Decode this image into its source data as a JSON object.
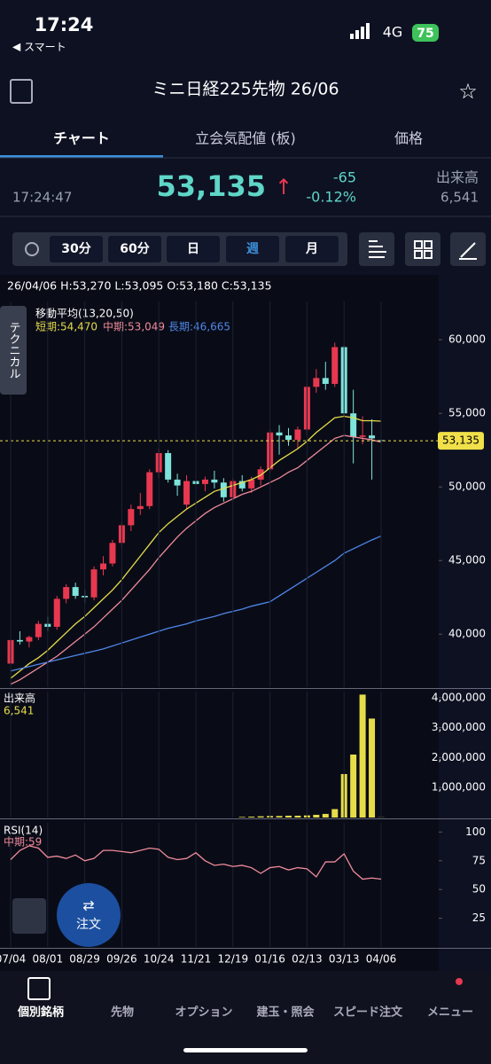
{
  "status": {
    "time": "17:24",
    "back": "スマート",
    "network": "4G",
    "battery": "75"
  },
  "header": {
    "title": "ミニ日経225先物 26/06"
  },
  "tabs": [
    "チャート",
    "立会気配値 (板)",
    "価格"
  ],
  "quote": {
    "time": "17:24:47",
    "price": "53,135",
    "arrow": "↑",
    "change": "-65",
    "change_pct": "-0.12%",
    "volume_label": "出来高",
    "volume": "6,541"
  },
  "toolbar": {
    "buttons": [
      "30分",
      "60分",
      "日",
      "週",
      "月"
    ],
    "selected": 3
  },
  "side_tab": "テクニカル",
  "ohlc_info": "26/04/06 H:53,270 L:53,095 O:53,180 C:53,135",
  "order_button": "注文",
  "nav": [
    "個別銘柄",
    "先物",
    "オプション",
    "建玉・照会",
    "スピード注文",
    "メニュー"
  ],
  "chart_data": [
    {
      "type": "candlestick",
      "title": "移動平均(13,20,50)",
      "up_color": "#e8384f",
      "down_color": "#7ee3da",
      "open": [
        38000,
        39600,
        39500,
        39800,
        40700,
        40500,
        42400,
        43200,
        42600,
        42500,
        44400,
        44800,
        46200,
        47400,
        48500,
        48700,
        51000,
        52300,
        50500,
        48800,
        50400,
        50200,
        50500,
        50300,
        49300,
        50400,
        49900,
        50500,
        51200,
        53700,
        53500,
        53200,
        53900,
        56800,
        57400,
        57000,
        59500,
        55000,
        53400,
        53500,
        53180
      ],
      "high": [
        39800,
        40200,
        39900,
        40900,
        41200,
        42600,
        43400,
        43500,
        43000,
        44600,
        45300,
        46400,
        47600,
        48800,
        49600,
        51200,
        52600,
        52500,
        50900,
        50800,
        50900,
        50700,
        51100,
        50600,
        50600,
        50800,
        50700,
        51400,
        53900,
        54200,
        54000,
        54100,
        57000,
        58000,
        58500,
        59800,
        59600,
        56600,
        54800,
        54600,
        53270
      ],
      "low": [
        37200,
        39300,
        39100,
        39600,
        40200,
        40300,
        42100,
        42400,
        42100,
        42300,
        44000,
        44600,
        45900,
        47000,
        48100,
        48500,
        50600,
        50300,
        49400,
        48500,
        49900,
        49700,
        49900,
        49000,
        49100,
        49700,
        49600,
        50100,
        51000,
        52200,
        52800,
        52600,
        53500,
        56400,
        56600,
        56800,
        54800,
        51600,
        52900,
        50500,
        53095
      ],
      "close": [
        39600,
        39500,
        39800,
        40700,
        40500,
        42400,
        43200,
        42600,
        42500,
        44400,
        44800,
        46200,
        47400,
        48500,
        48700,
        51000,
        52300,
        50500,
        50100,
        50400,
        50200,
        50500,
        50300,
        49300,
        50400,
        49900,
        50500,
        51200,
        53700,
        53500,
        53200,
        53900,
        56800,
        57400,
        57000,
        59500,
        55000,
        53400,
        53500,
        53300,
        53135
      ],
      "series": [
        {
          "name": "短期:54,470",
          "color": "#e6dc4a",
          "values": [
            37000,
            37500,
            38000,
            38400,
            38900,
            39500,
            40100,
            40700,
            41200,
            41800,
            42400,
            43000,
            43700,
            44500,
            45300,
            46100,
            46900,
            47500,
            48000,
            48500,
            48900,
            49300,
            49700,
            49900,
            50100,
            50300,
            50500,
            50800,
            51300,
            51800,
            52200,
            52600,
            53100,
            53700,
            54200,
            54700,
            54800,
            54700,
            54500,
            54500,
            54470
          ]
        },
        {
          "name": "中期:53,049",
          "color": "#f08a9a",
          "values": [
            36600,
            36900,
            37300,
            37700,
            38100,
            38500,
            39000,
            39500,
            40000,
            40500,
            41100,
            41700,
            42300,
            43000,
            43700,
            44400,
            45200,
            45900,
            46600,
            47200,
            47700,
            48200,
            48600,
            48900,
            49200,
            49500,
            49700,
            50000,
            50300,
            50600,
            51000,
            51300,
            51800,
            52300,
            52800,
            53300,
            53500,
            53400,
            53300,
            53200,
            53049
          ]
        },
        {
          "name": "長期:46,665",
          "color": "#4f86e8",
          "values": [
            37500,
            37650,
            37800,
            37950,
            38100,
            38250,
            38400,
            38550,
            38700,
            38850,
            39000,
            39200,
            39400,
            39600,
            39800,
            40000,
            40200,
            40400,
            40550,
            40700,
            40900,
            41050,
            41200,
            41400,
            41550,
            41700,
            41900,
            42050,
            42200,
            42600,
            43000,
            43400,
            43800,
            44200,
            44600,
            45000,
            45500,
            45800,
            46100,
            46400,
            46665
          ]
        }
      ],
      "price_line": {
        "value": 53135,
        "label": "53,135",
        "color": "#f0e04a"
      },
      "ylim": [
        36400,
        62600
      ],
      "yticks": [
        {
          "value": 40000,
          "label": "40,000"
        },
        {
          "value": 45000,
          "label": "45,000"
        },
        {
          "value": 50000,
          "label": "50,000"
        },
        {
          "value": 55000,
          "label": "55,000"
        },
        {
          "value": 60000,
          "label": "60,000"
        }
      ]
    },
    {
      "type": "bar",
      "title": "出来高",
      "legend_value": "6,541",
      "color": "#e6dc4a",
      "values": [
        0,
        0,
        0,
        0,
        0,
        0,
        0,
        0,
        0,
        0,
        0,
        0,
        0,
        0,
        0,
        0,
        0,
        0,
        0,
        0,
        0,
        0,
        0,
        0,
        0,
        20000,
        30000,
        40000,
        50000,
        50000,
        60000,
        60000,
        70000,
        90000,
        120000,
        280000,
        1450000,
        2100000,
        4100000,
        3300000,
        6541
      ],
      "ylim": [
        0,
        4200000
      ],
      "yticks": [
        {
          "value": 1000000,
          "label": "1,000,000"
        },
        {
          "value": 2000000,
          "label": "2,000,000"
        },
        {
          "value": 3000000,
          "label": "3,000,000"
        },
        {
          "value": 4000000,
          "label": "4,000,000"
        }
      ]
    },
    {
      "type": "line",
      "title": "RSI(14)",
      "categories": [
        "07/04",
        null,
        null,
        null,
        "08/01",
        null,
        null,
        null,
        "08/29",
        null,
        null,
        null,
        "09/26",
        null,
        null,
        null,
        "10/24",
        null,
        null,
        null,
        "11/21",
        null,
        null,
        null,
        "12/19",
        null,
        null,
        null,
        "01/16",
        null,
        null,
        null,
        "02/13",
        null,
        null,
        null,
        "03/13",
        null,
        null,
        null,
        "04/06"
      ],
      "series": [
        {
          "name": "中期:59",
          "color": "#f08a9a",
          "values": [
            76,
            84,
            88,
            86,
            78,
            79,
            77,
            80,
            75,
            77,
            84,
            84,
            83,
            82,
            84,
            86,
            85,
            78,
            76,
            77,
            82,
            75,
            71,
            72,
            70,
            71,
            69,
            64,
            69,
            70,
            67,
            69,
            68,
            61,
            74,
            74,
            81,
            66,
            59,
            60,
            59
          ]
        }
      ],
      "ylim": [
        0,
        108
      ],
      "yticks": [
        25,
        50,
        75,
        100
      ]
    }
  ]
}
